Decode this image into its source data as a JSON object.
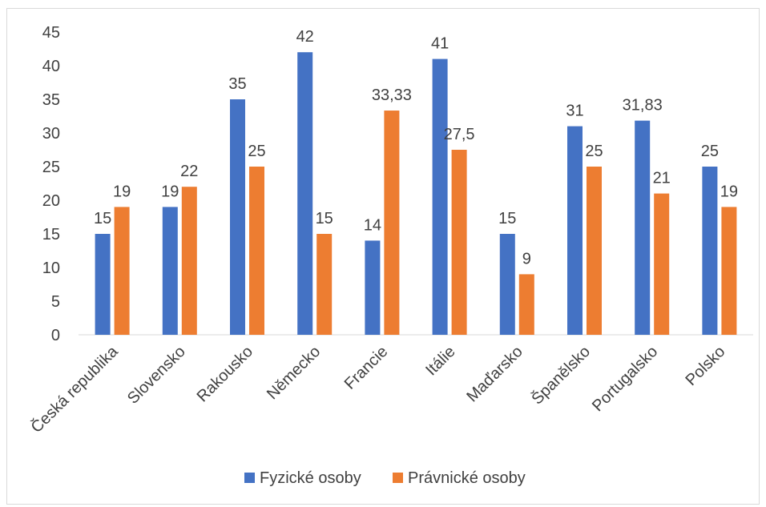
{
  "chart_data": {
    "type": "bar",
    "title": "",
    "xlabel": "",
    "ylabel": "",
    "ylim": [
      0,
      45
    ],
    "yticks": [
      0,
      5,
      10,
      15,
      20,
      25,
      30,
      35,
      40,
      45
    ],
    "grid": false,
    "legend_position": "bottom",
    "categories": [
      "Česká republika",
      "Slovensko",
      "Rakousko",
      "Německo",
      "Francie",
      "Itálie",
      "Maďarsko",
      "Španělsko",
      "Portugalsko",
      "Polsko"
    ],
    "series": [
      {
        "name": "Fyzické osoby",
        "color": "#4472c4",
        "values": [
          15,
          19,
          35,
          42,
          14,
          41,
          15,
          31,
          31.83,
          25
        ],
        "labels": [
          "15",
          "19",
          "35",
          "42",
          "14",
          "41",
          "15",
          "31",
          "31,83",
          "25"
        ]
      },
      {
        "name": "Právnické osoby",
        "color": "#ed7d31",
        "values": [
          19,
          22,
          25,
          15,
          33.33,
          27.5,
          9,
          25,
          21,
          19
        ],
        "labels": [
          "19",
          "22",
          "25",
          "15",
          "33,33",
          "27,5",
          "9",
          "25",
          "21",
          "19"
        ]
      }
    ]
  }
}
